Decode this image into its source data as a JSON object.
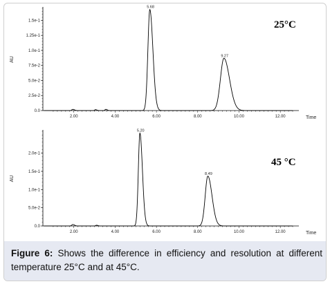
{
  "chart_data": [
    {
      "type": "line",
      "title": "",
      "annotation": "25°C",
      "xlabel": "Time",
      "ylabel": "AU",
      "xlim": [
        0.5,
        12.9
      ],
      "ylim": [
        0,
        0.17
      ],
      "x_ticks": [
        2.0,
        4.0,
        6.0,
        8.0,
        10.0,
        12.0
      ],
      "x_tick_labels": [
        "2.00",
        "4.00",
        "6.00",
        "8.00",
        "10.00",
        "12.00"
      ],
      "y_ticks": [
        0.0,
        0.025,
        0.05,
        0.075,
        0.1,
        0.125,
        0.15
      ],
      "y_tick_labels": [
        "0.0",
        "2.5e-2",
        "5.0e-2",
        "7.5e-2",
        "1.0e-1",
        "1.25e-1",
        "1.5e-1"
      ],
      "grid": false,
      "peaks": [
        {
          "x": 5.68,
          "y": 0.168,
          "label": "5.68",
          "width": 0.11
        },
        {
          "x": 9.27,
          "y": 0.087,
          "label": "9.27",
          "width": 0.2
        }
      ],
      "minor_peaks": [
        {
          "x": 1.95,
          "y": 0.002,
          "width": 0.06
        },
        {
          "x": 3.05,
          "y": 0.0015,
          "width": 0.05
        },
        {
          "x": 3.55,
          "y": 0.002,
          "width": 0.05
        }
      ]
    },
    {
      "type": "line",
      "title": "",
      "annotation": "45 °C",
      "xlabel": "Time",
      "ylabel": "AU",
      "xlim": [
        0.5,
        12.9
      ],
      "ylim": [
        0,
        0.26
      ],
      "x_ticks": [
        2.0,
        4.0,
        6.0,
        8.0,
        10.0,
        12.0
      ],
      "x_tick_labels": [
        "2.00",
        "4.00",
        "6.00",
        "8.00",
        "10.00",
        "12.00"
      ],
      "y_ticks": [
        0.0,
        0.05,
        0.1,
        0.15,
        0.2
      ],
      "y_tick_labels": [
        "0.0",
        "5.0e-2",
        "1.0e-1",
        "1.5e-1",
        "2.0e-1"
      ],
      "grid": false,
      "peaks": [
        {
          "x": 5.2,
          "y": 0.255,
          "label": "5.20",
          "width": 0.09
        },
        {
          "x": 8.49,
          "y": 0.137,
          "label": "8.49",
          "width": 0.15
        }
      ],
      "minor_peaks": [
        {
          "x": 1.95,
          "y": 0.004,
          "width": 0.06
        },
        {
          "x": 3.1,
          "y": 0.002,
          "width": 0.05
        }
      ]
    }
  ],
  "caption": {
    "figure_label": "Figure 6:",
    "text": " Shows the difference in efficiency and resolution at different temperature 25°C and at 45°C."
  }
}
